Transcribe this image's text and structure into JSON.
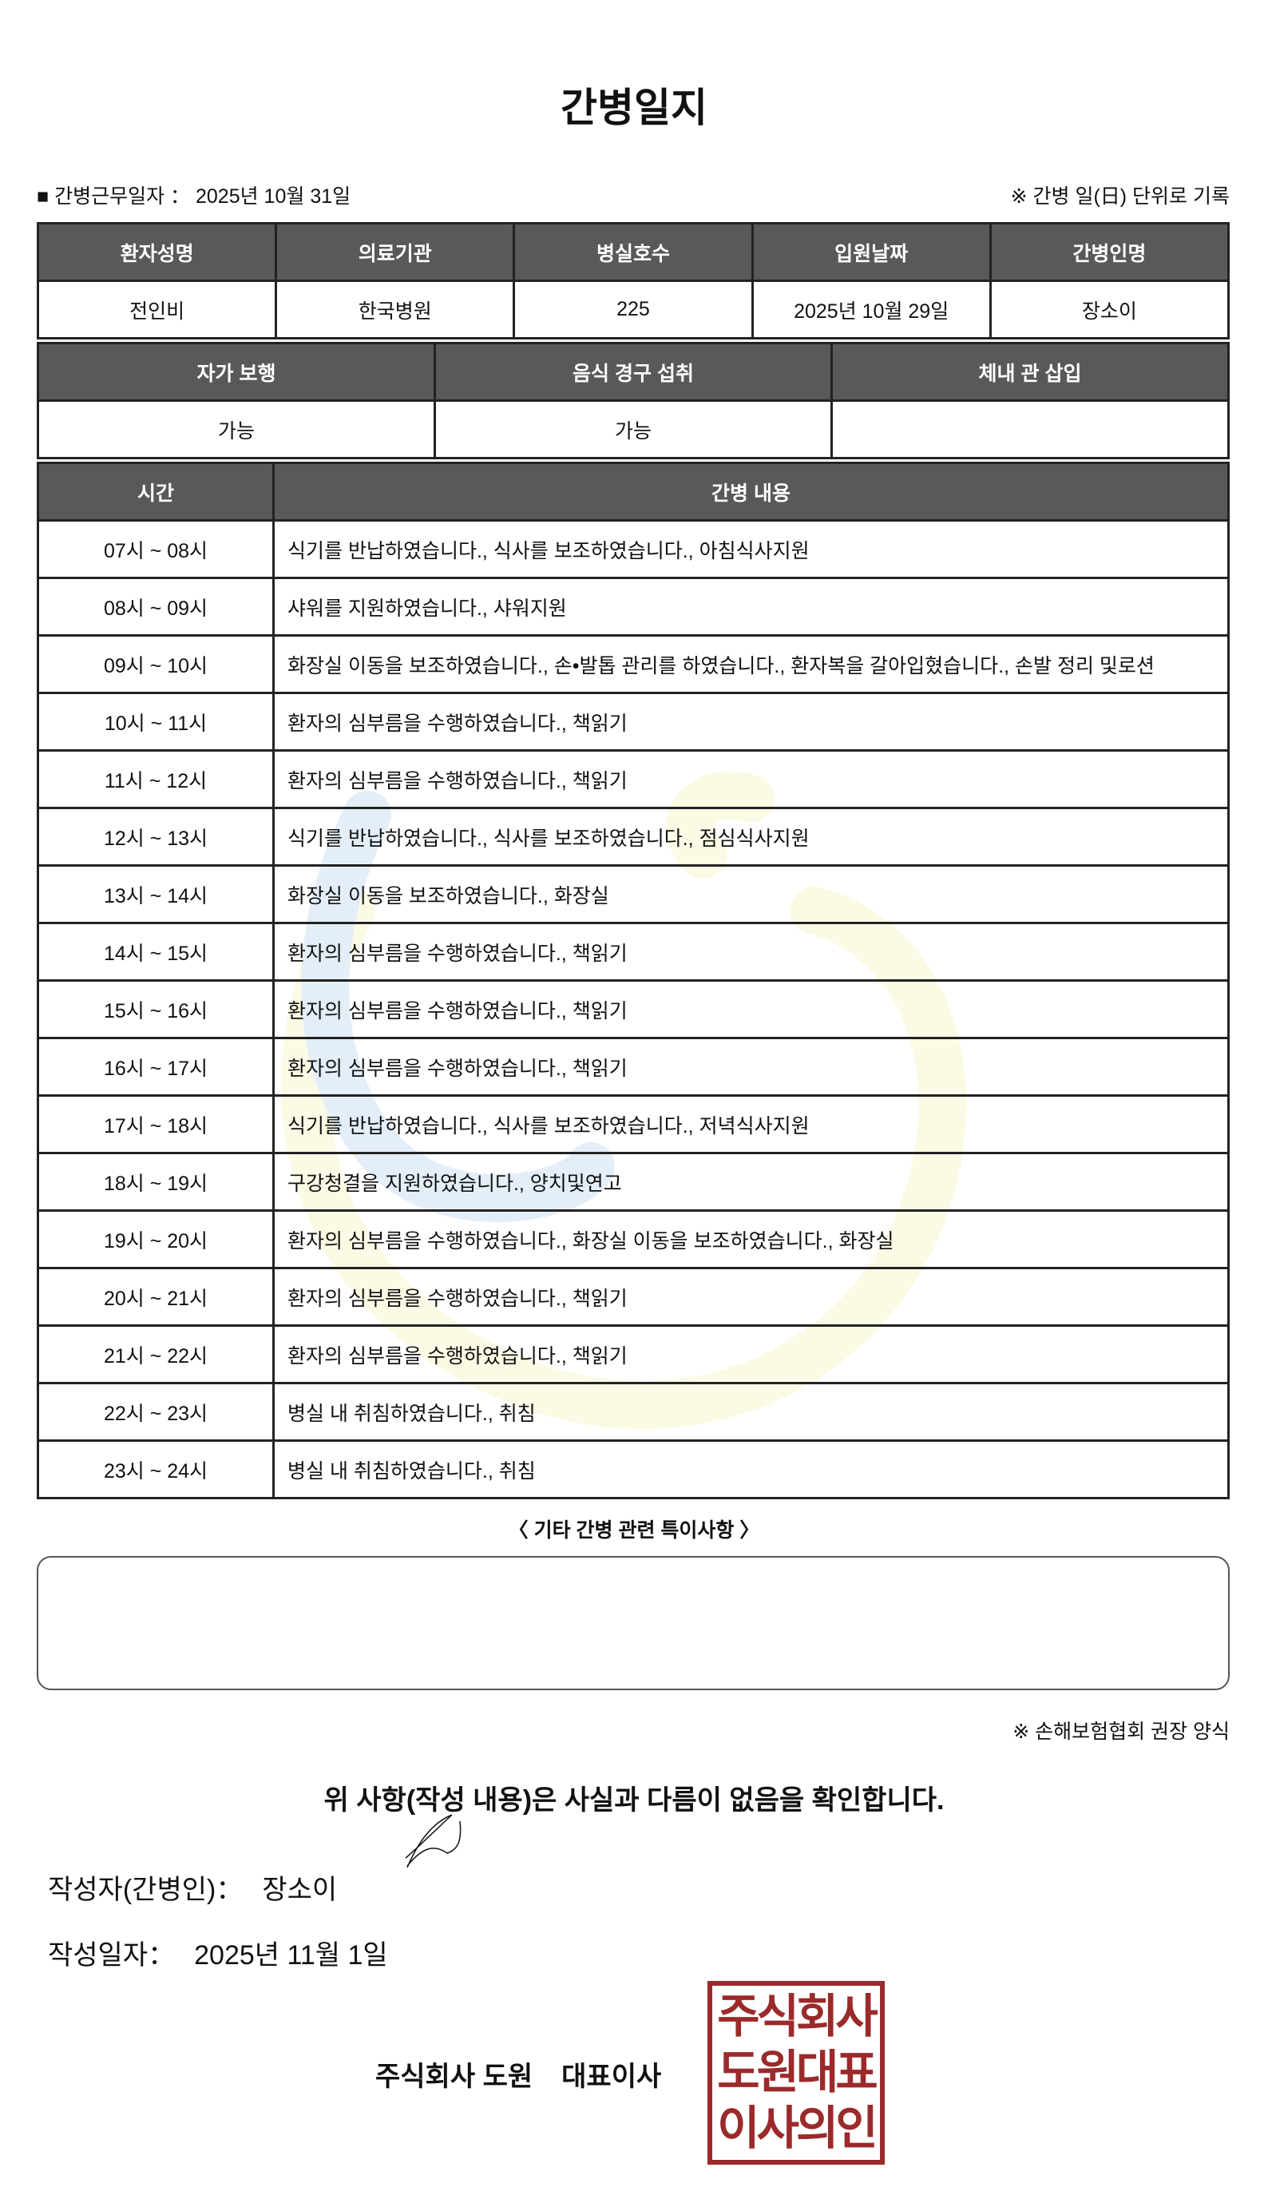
{
  "title": "간병일지",
  "shift": {
    "marker": "■",
    "label": "간병근무일자",
    "separator": "：",
    "value": "2025년 10월 31일"
  },
  "unit_note": "※ 간병 일(日) 단위로 기록",
  "info_table": {
    "headers": [
      "환자성명",
      "의료기관",
      "병실호수",
      "입원날짜",
      "간병인명"
    ],
    "values": [
      "전인비",
      "한국병원",
      "225",
      "2025년 10월 29일",
      "장소이"
    ]
  },
  "status_table": {
    "headers": [
      "자가 보행",
      "음식 경구 섭취",
      "체내 관 삽입"
    ],
    "values": [
      "가능",
      "가능",
      ""
    ]
  },
  "log_table": {
    "headers": [
      "시간",
      "간병 내용"
    ],
    "rows": [
      {
        "time": "07시 ~ 08시",
        "content": "식기를 반납하였습니다., 식사를 보조하였습니다., 아침식사지원"
      },
      {
        "time": "08시 ~ 09시",
        "content": "샤워를 지원하였습니다., 샤워지원"
      },
      {
        "time": "09시 ~ 10시",
        "content": "화장실 이동을 보조하였습니다., 손•발톱 관리를 하였습니다., 환자복을 갈아입혔습니다., 손발 정리 및로션"
      },
      {
        "time": "10시 ~ 11시",
        "content": "환자의 심부름을 수행하였습니다., 책읽기"
      },
      {
        "time": "11시 ~ 12시",
        "content": "환자의 심부름을 수행하였습니다., 책읽기"
      },
      {
        "time": "12시 ~ 13시",
        "content": "식기를 반납하였습니다., 식사를 보조하였습니다., 점심식사지원"
      },
      {
        "time": "13시 ~ 14시",
        "content": "화장실 이동을 보조하였습니다., 화장실"
      },
      {
        "time": "14시 ~ 15시",
        "content": "환자의 심부름을 수행하였습니다., 책읽기"
      },
      {
        "time": "15시 ~ 16시",
        "content": "환자의 심부름을 수행하였습니다., 책읽기"
      },
      {
        "time": "16시 ~ 17시",
        "content": "환자의 심부름을 수행하였습니다., 책읽기"
      },
      {
        "time": "17시 ~ 18시",
        "content": "식기를 반납하였습니다., 식사를 보조하였습니다., 저녁식사지원"
      },
      {
        "time": "18시 ~ 19시",
        "content": "구강청결을 지원하였습니다., 양치및연고"
      },
      {
        "time": "19시 ~ 20시",
        "content": "환자의 심부름을 수행하였습니다., 화장실 이동을 보조하였습니다., 화장실"
      },
      {
        "time": "20시 ~ 21시",
        "content": "환자의 심부름을 수행하였습니다., 책읽기"
      },
      {
        "time": "21시 ~ 22시",
        "content": "환자의 심부름을 수행하였습니다., 책읽기"
      },
      {
        "time": "22시 ~ 23시",
        "content": "병실 내 취침하였습니다., 취침"
      },
      {
        "time": "23시 ~ 24시",
        "content": "병실 내 취침하였습니다., 취침"
      }
    ]
  },
  "notes": {
    "title": "〈 기타 간병 관련 특이사항 〉",
    "value": ""
  },
  "assoc_note": "※ 손해보험협회 권장 양식",
  "confirm": "위 사항(작성 내용)은 사실과 다름이 없음을 확인합니다.",
  "author": {
    "label": "작성자(간병인)：",
    "value": "장소이"
  },
  "written_date": {
    "label": "작성일자：",
    "value": "2025년 11월 1일"
  },
  "company": {
    "name": "주식회사 도원",
    "title": "대표이사"
  },
  "stamp": {
    "lines": [
      "주식회사",
      "도원대표",
      "이사의인"
    ],
    "color": "#9b2a2a"
  },
  "colors": {
    "header_bg": "#595959",
    "header_text": "#ffffff"
  }
}
